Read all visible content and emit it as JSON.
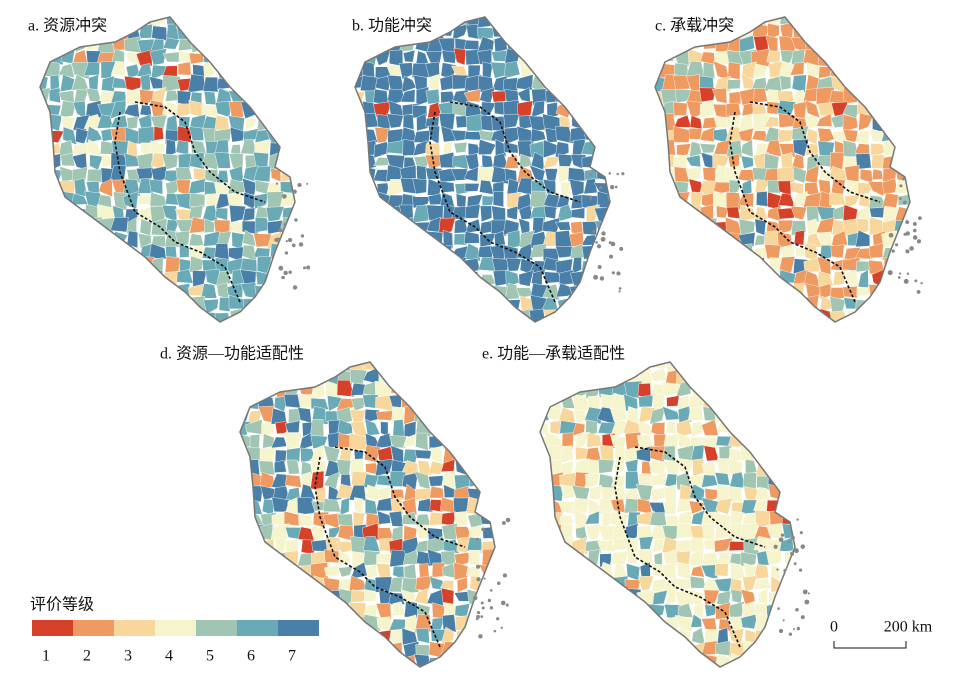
{
  "panels": [
    {
      "title": "a. 资源冲突"
    },
    {
      "title": "b. 功能冲突"
    },
    {
      "title": "c. 承载冲突"
    },
    {
      "title": "d. 资源—功能适配性"
    },
    {
      "title": "e. 功能—承载适配性"
    }
  ],
  "legend": {
    "title": "评价等级",
    "items": [
      {
        "label": "1",
        "color": "#d6412a"
      },
      {
        "label": "2",
        "color": "#ee9a60"
      },
      {
        "label": "3",
        "color": "#f7d79c"
      },
      {
        "label": "4",
        "color": "#f6f4cd"
      },
      {
        "label": "5",
        "color": "#a0c6b3"
      },
      {
        "label": "6",
        "color": "#6aaab6"
      },
      {
        "label": "7",
        "color": "#4a80a8"
      }
    ]
  },
  "scale_bar": {
    "start": "0",
    "end": "200 km"
  }
}
